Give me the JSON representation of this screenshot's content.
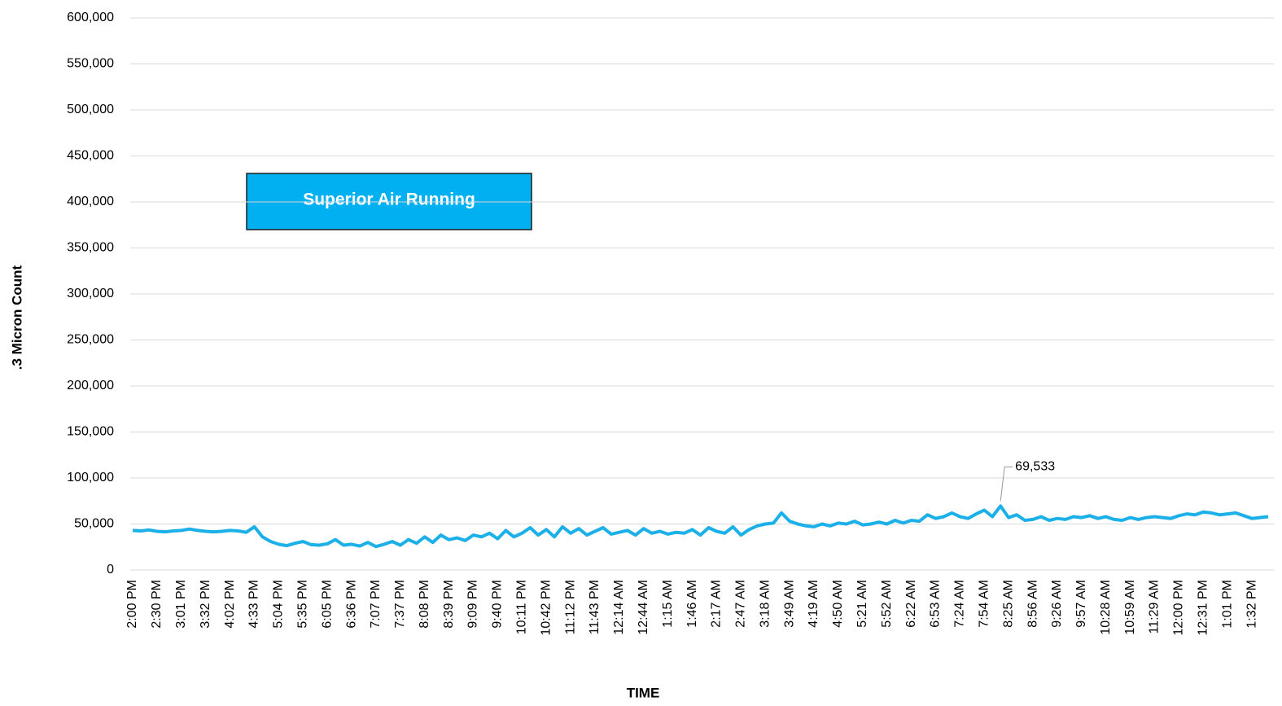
{
  "chart_data": {
    "type": "line",
    "x_label": "TIME",
    "y_label": ".3 Micron Count",
    "annotation": "Superior Air Running",
    "categories": [
      "2:00 PM",
      null,
      null,
      "2:30 PM",
      null,
      null,
      "3:01 PM",
      null,
      null,
      "3:32 PM",
      null,
      null,
      "4:02 PM",
      null,
      null,
      "4:33 PM",
      null,
      null,
      "5:04 PM",
      null,
      null,
      "5:35 PM",
      null,
      null,
      "6:05 PM",
      null,
      null,
      "6:36 PM",
      null,
      null,
      "7:07 PM",
      null,
      null,
      "7:37 PM",
      null,
      null,
      "8:08 PM",
      null,
      null,
      "8:39 PM",
      null,
      null,
      "9:09 PM",
      null,
      null,
      "9:40 PM",
      null,
      null,
      "10:11 PM",
      null,
      null,
      "10:42 PM",
      null,
      null,
      "11:12 PM",
      null,
      null,
      "11:43 PM",
      null,
      null,
      "12:14 AM",
      null,
      null,
      "12:44 AM",
      null,
      null,
      "1:15 AM",
      null,
      null,
      "1:46 AM",
      null,
      null,
      "2:17 AM",
      null,
      null,
      "2:47 AM",
      null,
      null,
      "3:18 AM",
      null,
      null,
      "3:49 AM",
      null,
      null,
      "4:19 AM",
      null,
      null,
      "4:50 AM",
      null,
      null,
      "5:21 AM",
      null,
      null,
      "5:52 AM",
      null,
      null,
      "6:22 AM",
      null,
      null,
      "6:53 AM",
      null,
      null,
      "7:24 AM",
      null,
      null,
      "7:54 AM",
      null,
      null,
      "8:25 AM",
      null,
      null,
      "8:56 AM",
      null,
      null,
      "9:26 AM",
      null,
      null,
      "9:57 AM",
      null,
      null,
      "10:28 AM",
      null,
      null,
      "10:59 AM",
      null,
      null,
      "11:29 AM",
      null,
      null,
      "12:00 PM",
      null,
      null,
      "12:31 PM",
      null,
      null,
      "1:01 PM",
      null,
      null,
      "1:32 PM",
      null,
      null
    ],
    "series": [
      {
        "name": ".3 Micron Count",
        "color": "#1cb0e8",
        "values": [
          43000,
          42500,
          43500,
          42000,
          41500,
          42500,
          43000,
          44500,
          43000,
          42000,
          41500,
          42000,
          43000,
          42500,
          41000,
          47000,
          36000,
          31000,
          28000,
          26500,
          29000,
          31000,
          27500,
          27000,
          28500,
          33000,
          27000,
          28000,
          26000,
          30000,
          25500,
          28000,
          31000,
          27000,
          33000,
          29000,
          36000,
          30000,
          38000,
          33000,
          35000,
          32000,
          38000,
          36000,
          40000,
          34000,
          43000,
          36000,
          40000,
          46000,
          38000,
          44000,
          36000,
          47000,
          40000,
          45000,
          38000,
          42000,
          46000,
          39000,
          41000,
          43000,
          38000,
          45000,
          40000,
          42000,
          39000,
          41000,
          40000,
          44000,
          38000,
          46000,
          42000,
          40000,
          47000,
          38000,
          44000,
          48000,
          50000,
          51000,
          62000,
          53000,
          50000,
          48000,
          47000,
          50000,
          48000,
          51000,
          50000,
          53000,
          49000,
          50000,
          52000,
          50000,
          54000,
          51000,
          54000,
          53000,
          60000,
          56000,
          58000,
          62000,
          58000,
          56000,
          61000,
          65000,
          58000,
          69533,
          57000,
          60000,
          54000,
          55000,
          58000,
          54000,
          56000,
          55000,
          58000,
          57000,
          59000,
          56000,
          58000,
          55000,
          54000,
          57000,
          55000,
          57000,
          58000,
          57000,
          56000,
          59000,
          61000,
          60000,
          63000,
          62000,
          60000,
          61000,
          62000,
          59000,
          56000,
          57000,
          58000
        ],
        "value_labels": [
          null,
          null,
          null,
          null,
          null,
          null,
          null,
          null,
          null,
          null,
          null,
          null,
          null,
          null,
          null,
          null,
          null,
          null,
          null,
          null,
          null,
          null,
          null,
          null,
          null,
          null,
          null,
          null,
          null,
          null,
          null,
          null,
          null,
          null,
          null,
          null,
          null,
          null,
          null,
          null,
          null,
          null,
          null,
          null,
          null,
          null,
          null,
          null,
          null,
          null,
          null,
          null,
          null,
          null,
          null,
          null,
          null,
          null,
          null,
          null,
          null,
          null,
          null,
          null,
          null,
          null,
          null,
          null,
          null,
          null,
          null,
          null,
          null,
          null,
          null,
          null,
          null,
          null,
          null,
          null,
          null,
          null,
          null,
          null,
          null,
          null,
          null,
          null,
          null,
          null,
          null,
          null,
          null,
          null,
          null,
          null,
          null,
          null,
          null,
          null,
          null,
          null,
          null,
          null,
          null,
          null,
          null,
          "69,533",
          null,
          null,
          null,
          null,
          null,
          null,
          null,
          null,
          null,
          null,
          null,
          null,
          null,
          null,
          null,
          null,
          null,
          null,
          null,
          null,
          null,
          null,
          null,
          null,
          null,
          null,
          null,
          null,
          null,
          null,
          null,
          null,
          null
        ]
      }
    ],
    "ylim": [
      0,
      600000
    ],
    "yticks": [
      0,
      {
        "value": 50000,
        "label": "50,000"
      },
      {
        "value": 100000,
        "label": "100,000"
      },
      {
        "value": 150000,
        "label": "150,000"
      },
      {
        "value": 200000,
        "label": "200,000"
      },
      {
        "value": 250000,
        "label": "250,000"
      },
      {
        "value": 300000,
        "label": "300,000"
      },
      {
        "value": 350000,
        "label": "350,000"
      },
      {
        "value": 400000,
        "label": "400,000"
      },
      {
        "value": 450000,
        "label": "450,000"
      },
      {
        "value": 500000,
        "label": "500,000"
      },
      {
        "value": 550000,
        "label": "550,000"
      },
      {
        "value": 600000,
        "label": "600,000"
      }
    ],
    "grid": true
  }
}
